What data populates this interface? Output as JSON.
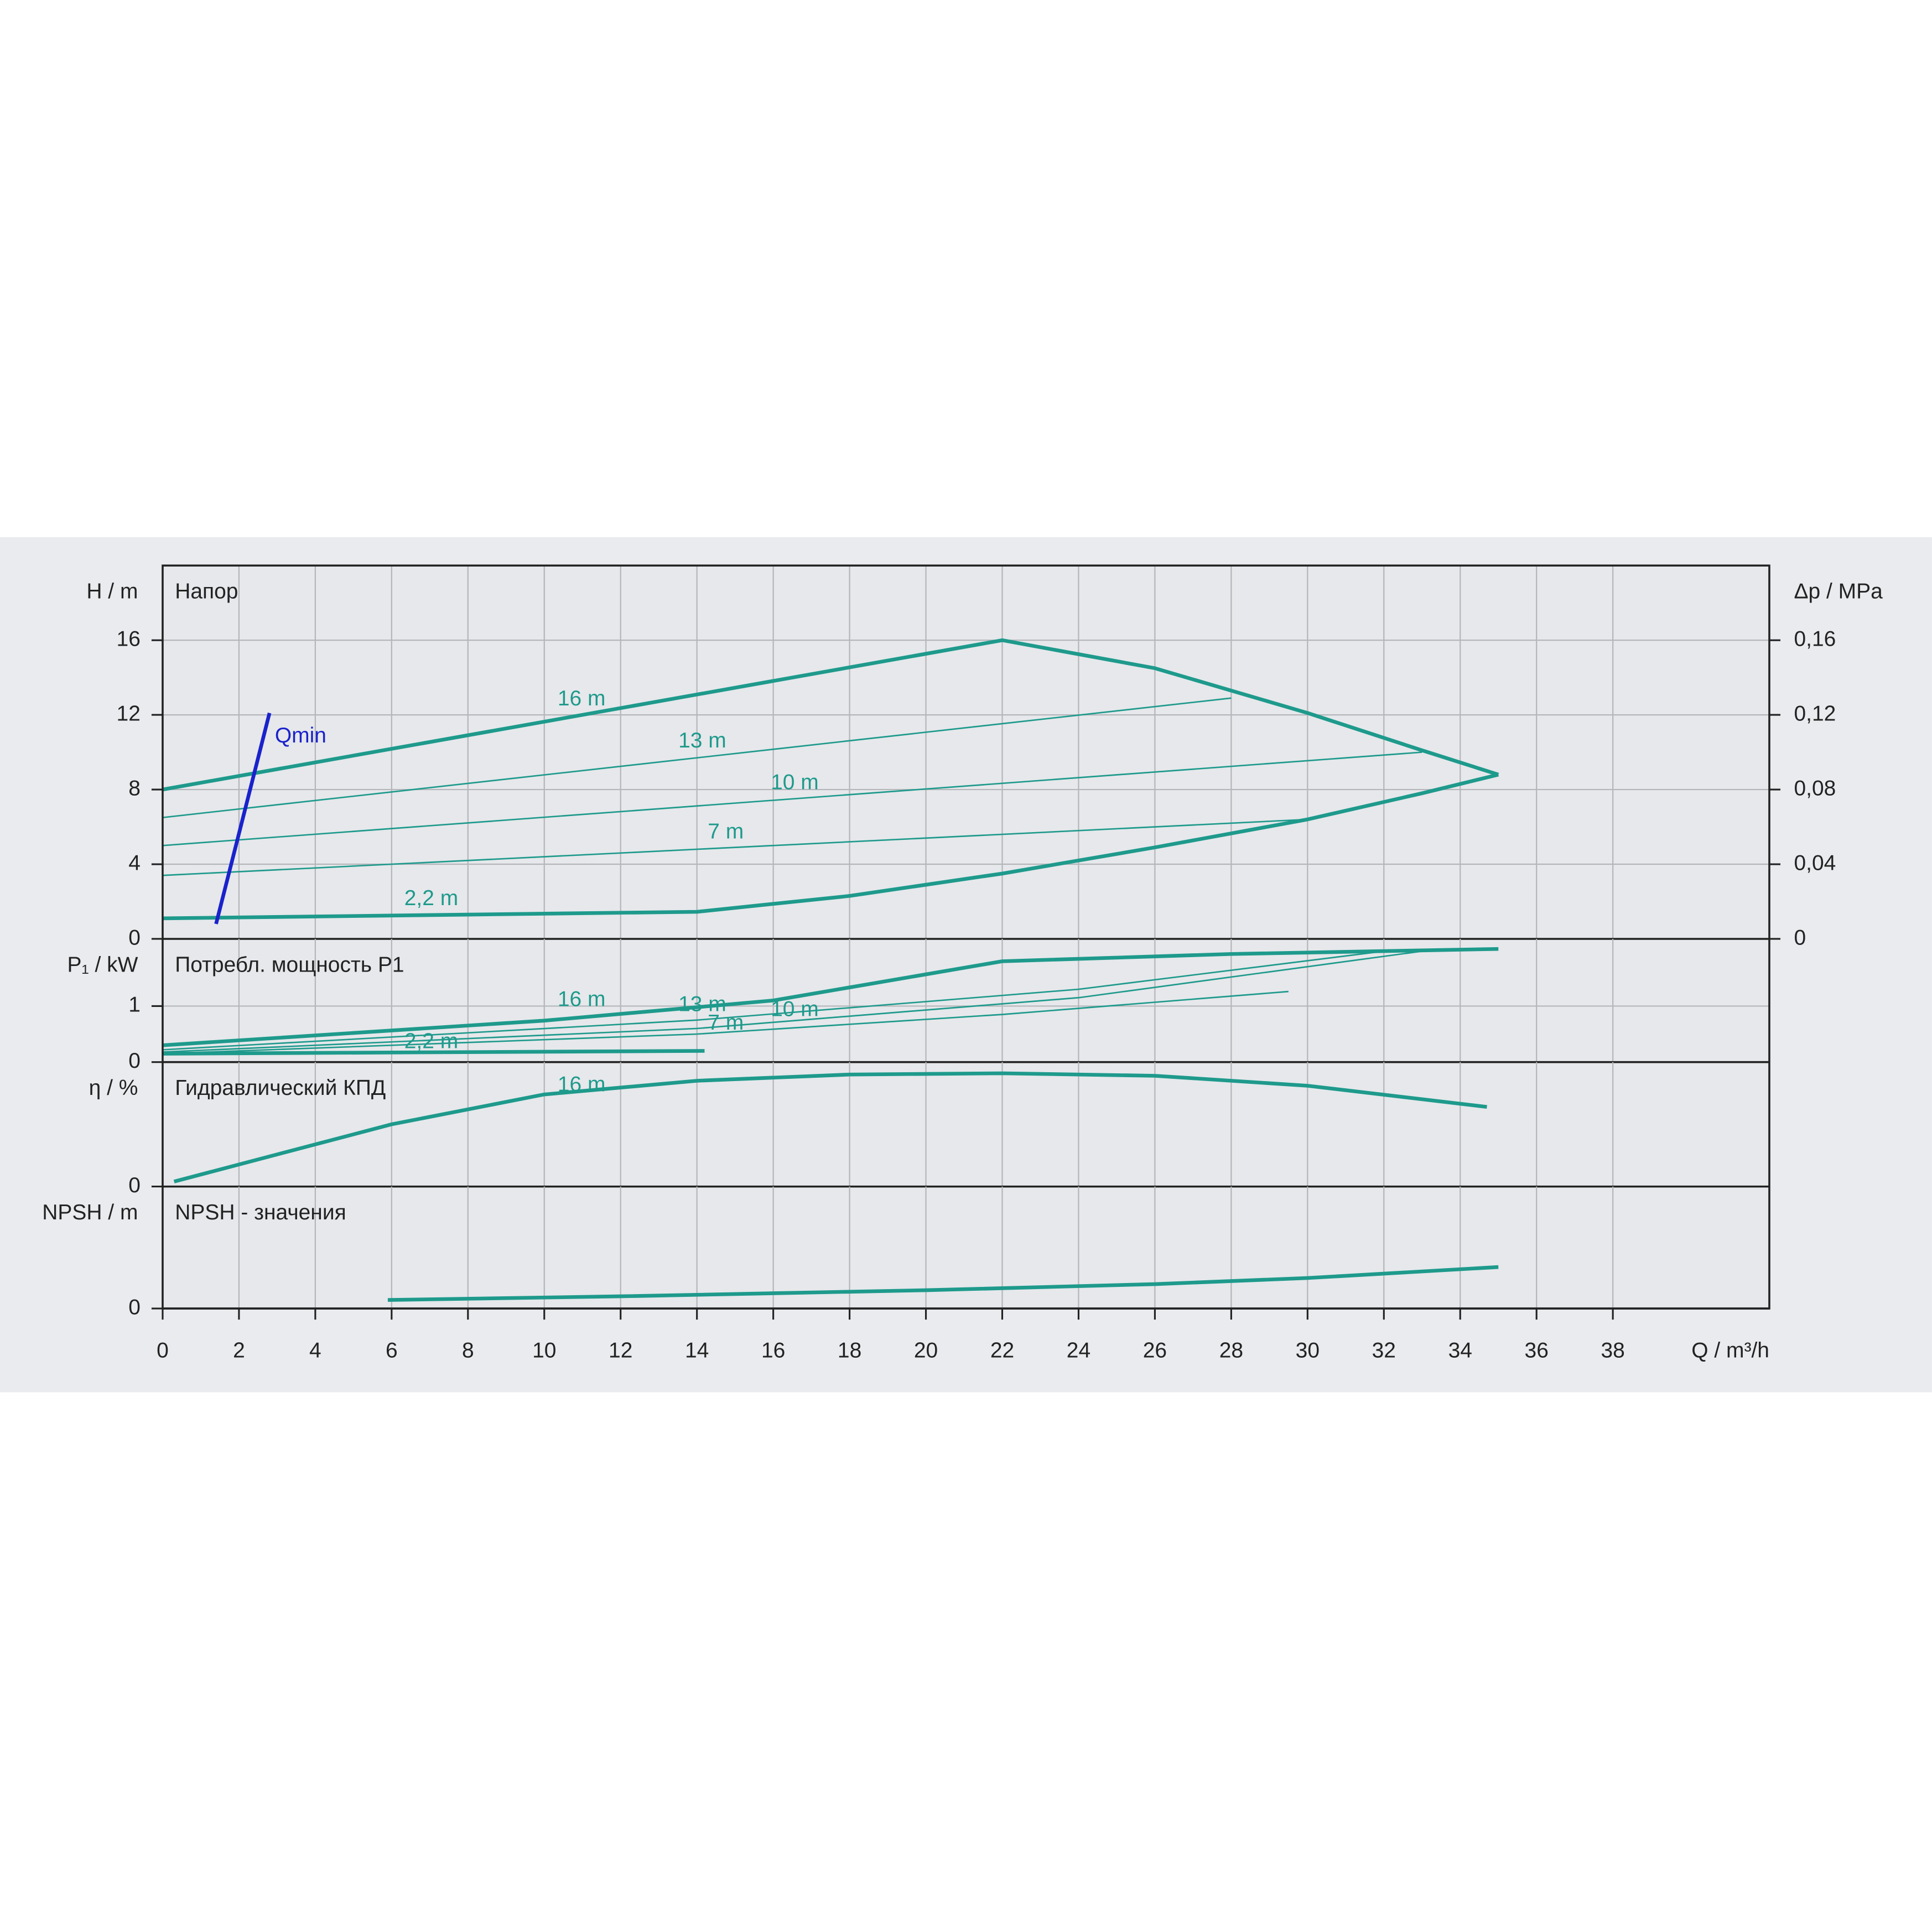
{
  "chart_data": [
    {
      "type": "line",
      "title": "Напор",
      "ylabel": "H / m",
      "y2label": "Δp / MPa",
      "xlim": [
        0,
        42.1
      ],
      "ylim": [
        0,
        20
      ],
      "yticks": [
        0,
        4,
        8,
        12,
        16
      ],
      "y2lim": [
        0,
        0.2
      ],
      "y2ticks": [
        0,
        {
          "value": 0.04,
          "label": "0,04"
        },
        {
          "value": 0.08,
          "label": "0,08"
        },
        {
          "value": 0.12,
          "label": "0,12"
        },
        {
          "value": 0.16,
          "label": "0,16"
        }
      ],
      "grid": true,
      "series": [
        {
          "name": "16 m",
          "color": "#1e9a8c",
          "linewidth": 3,
          "x": [
            0,
            22,
            26,
            30,
            33,
            35
          ],
          "values": [
            8,
            16,
            14.5,
            12.1,
            10.1,
            8.8
          ]
        },
        {
          "name": "13 m",
          "color": "#1e9a8c",
          "linewidth": 1.2,
          "x": [
            0,
            28
          ],
          "values": [
            6.5,
            12.9
          ]
        },
        {
          "name": "10 m",
          "color": "#1e9a8c",
          "linewidth": 1.2,
          "x": [
            0,
            33
          ],
          "values": [
            5.0,
            10.0
          ]
        },
        {
          "name": "7 m",
          "color": "#1e9a8c",
          "linewidth": 1.2,
          "x": [
            0,
            30
          ],
          "values": [
            3.4,
            6.4
          ]
        },
        {
          "name": "2,2 m",
          "color": "#1e9a8c",
          "linewidth": 3,
          "x": [
            0,
            8,
            14,
            18,
            22,
            26,
            30,
            33,
            35
          ],
          "values": [
            1.1,
            1.3,
            1.45,
            2.3,
            3.5,
            4.9,
            6.4,
            7.8,
            8.8
          ]
        },
        {
          "name": "Qmin",
          "color": "#1a22cc",
          "linewidth": 3,
          "x": [
            1.4,
            2.8
          ],
          "values": [
            0.8,
            12.1
          ]
        }
      ]
    },
    {
      "type": "line",
      "title": "Потребл. мощность P1",
      "ylabel": "P₁ / kW",
      "xlim": [
        0,
        42.1
      ],
      "ylim": [
        0,
        2.2
      ],
      "yticks": [
        0,
        1
      ],
      "grid": true,
      "series": [
        {
          "name": "16 m",
          "color": "#1e9a8c",
          "linewidth": 3,
          "x": [
            0,
            10,
            16,
            22,
            28,
            35
          ],
          "values": [
            0.3,
            0.74,
            1.1,
            1.8,
            1.93,
            2.02
          ]
        },
        {
          "name": "13 m",
          "color": "#1e9a8c",
          "linewidth": 1.2,
          "x": [
            0,
            14,
            24,
            32
          ],
          "values": [
            0.22,
            0.75,
            1.3,
            1.98
          ]
        },
        {
          "name": "10 m",
          "color": "#1e9a8c",
          "linewidth": 1.2,
          "x": [
            0,
            14,
            24,
            33
          ],
          "values": [
            0.18,
            0.6,
            1.15,
            1.98
          ]
        },
        {
          "name": "7 m",
          "color": "#1e9a8c",
          "linewidth": 1.2,
          "x": [
            0,
            14,
            22,
            29.5
          ],
          "values": [
            0.15,
            0.5,
            0.85,
            1.26
          ]
        },
        {
          "name": "2,2 m",
          "color": "#1e9a8c",
          "linewidth": 3,
          "x": [
            0,
            14.2
          ],
          "values": [
            0.15,
            0.2
          ]
        }
      ]
    },
    {
      "type": "line",
      "title": "Гидравлический КПД",
      "ylabel": "η / %",
      "xlim": [
        0,
        42.1
      ],
      "ylim": [
        0,
        100
      ],
      "yticks": [
        0
      ],
      "grid": true,
      "series": [
        {
          "name": "16 m",
          "color": "#1e9a8c",
          "linewidth": 3,
          "x": [
            0.3,
            6,
            10,
            14,
            18,
            22,
            26,
            30,
            34.7
          ],
          "values": [
            4,
            50,
            74,
            85,
            90,
            91,
            89,
            81,
            64
          ]
        }
      ]
    },
    {
      "type": "line",
      "title": "NPSH - значения",
      "ylabel": "NPSH / m",
      "xlabel": "Q / m³/h",
      "xlim": [
        0,
        42.1
      ],
      "ylim": [
        0,
        10
      ],
      "yticks": [
        0
      ],
      "grid": true,
      "xticks": [
        0,
        2,
        4,
        6,
        8,
        10,
        12,
        14,
        16,
        18,
        20,
        22,
        24,
        26,
        28,
        30,
        32,
        34,
        36,
        38
      ],
      "series": [
        {
          "color": "#1e9a8c",
          "linewidth": 3,
          "x": [
            5.9,
            12,
            20,
            26,
            30,
            35
          ],
          "values": [
            0.7,
            1.0,
            1.5,
            2.0,
            2.5,
            3.4
          ]
        }
      ]
    }
  ]
}
